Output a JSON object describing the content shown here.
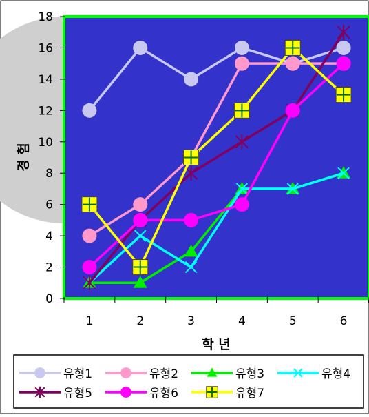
{
  "chart_data": {
    "type": "line",
    "title": "",
    "xlabel": "학 년",
    "ylabel": "경 험",
    "x": [
      1,
      2,
      3,
      4,
      5,
      6
    ],
    "xlim": [
      0.5,
      6.5
    ],
    "ylim": [
      0,
      18
    ],
    "yticks": [
      0,
      2,
      4,
      6,
      8,
      10,
      12,
      14,
      16,
      18
    ],
    "grid": false,
    "legend_position": "bottom",
    "plot_background": "#3333cc",
    "plot_border_color": "#00ff00",
    "series": [
      {
        "name": "유형1",
        "values": [
          12,
          16,
          14,
          16,
          15,
          16
        ],
        "color": "#c8c8f0",
        "marker": "circle"
      },
      {
        "name": "유형2",
        "values": [
          4,
          6,
          9,
          15,
          15,
          15
        ],
        "color": "#ff99cc",
        "marker": "circle"
      },
      {
        "name": "유형3",
        "values": [
          1,
          1,
          3,
          7,
          7,
          8
        ],
        "color": "#00ee00",
        "marker": "triangle"
      },
      {
        "name": "유형4",
        "values": [
          1,
          4,
          2,
          7,
          7,
          8
        ],
        "color": "#00ffff",
        "marker": "x"
      },
      {
        "name": "유형5",
        "values": [
          1,
          5,
          8,
          10,
          12,
          17
        ],
        "color": "#800060",
        "marker": "star"
      },
      {
        "name": "유형6",
        "values": [
          2,
          5,
          5,
          6,
          12,
          15
        ],
        "color": "#ff00ff",
        "marker": "circle"
      },
      {
        "name": "유형7",
        "values": [
          6,
          2,
          9,
          12,
          16,
          13
        ],
        "color": "#ffff00",
        "marker": "square-plus"
      }
    ]
  }
}
